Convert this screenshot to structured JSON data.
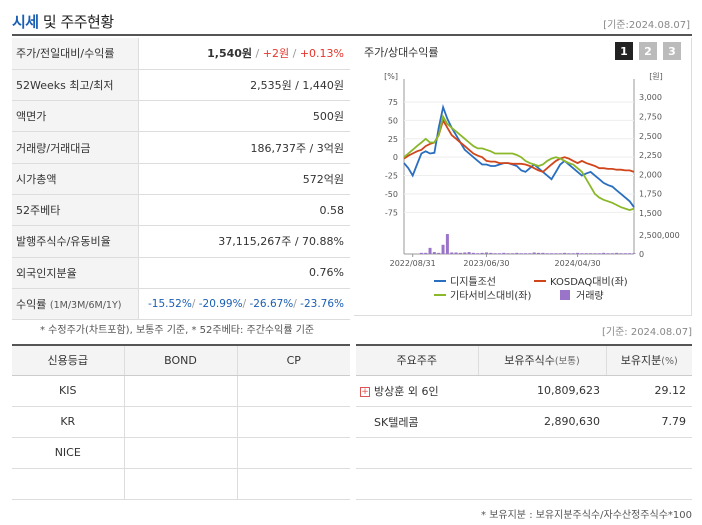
{
  "header": {
    "title_accent": "시세",
    "title_rest": " 및 주주현황",
    "date": "[기준:2024.08.07]"
  },
  "quote": {
    "rows": [
      {
        "label": "주가/전일대비/수익률"
      },
      {
        "label": "52Weeks 최고/최저",
        "value": "2,535원 / 1,440원"
      },
      {
        "label": "액면가",
        "value": "500원"
      },
      {
        "label": "거래량/거래대금",
        "value": "186,737주 / 3억원"
      },
      {
        "label": "시가총액",
        "value": "572억원"
      },
      {
        "label": "52주베타",
        "value": "0.58"
      },
      {
        "label": "발행주식수/유동비율",
        "value": "37,115,267주 / 70.88%"
      },
      {
        "label": "외국인지분율",
        "value": "0.76%"
      },
      {
        "label": "수익률",
        "label_sub": "(1M/3M/6M/1Y)"
      }
    ],
    "price": "1,540원",
    "change": "+2원",
    "change_pct": "+0.13%",
    "returns": [
      "-15.52%",
      "-20.99%",
      "-26.67%",
      "-23.76%"
    ]
  },
  "chart_panel": {
    "title": "주가/상대수익률",
    "tabs": [
      "1",
      "2",
      "3"
    ]
  },
  "chart_data": {
    "type": "line",
    "left_axis": {
      "unit": "[%]",
      "ticks": [
        "75",
        "50",
        "25",
        "0",
        "-25",
        "-50",
        "-75"
      ],
      "range": [
        -80,
        90
      ]
    },
    "right_axis": {
      "unit": "[원]",
      "ticks": [
        "3,000",
        "2,750",
        "2,500",
        "2,250",
        "2,000",
        "1,750",
        "1,500"
      ],
      "range": [
        1460,
        3080
      ]
    },
    "volume_axis": {
      "ticks": [
        "2,500,000",
        "0"
      ],
      "range": [
        0,
        3000000
      ]
    },
    "x_ticks": [
      "2022/08/31",
      "2023/06/30",
      "2024/04/30"
    ],
    "x_tick_index": [
      2,
      19,
      40
    ],
    "x_count": 54,
    "series": [
      {
        "name": "디지틀조선",
        "color": "#2a6ebf",
        "axis": "left",
        "values": [
          -8,
          -15,
          -25,
          -10,
          5,
          8,
          5,
          6,
          40,
          68,
          52,
          40,
          30,
          20,
          10,
          5,
          0,
          -5,
          -10,
          -10,
          -12,
          -12,
          -10,
          -8,
          -8,
          -10,
          -12,
          -18,
          -20,
          -15,
          -10,
          -15,
          -20,
          -25,
          -30,
          -20,
          -10,
          -5,
          -10,
          -15,
          -20,
          -25,
          -22,
          -20,
          -25,
          -30,
          -35,
          -38,
          -40,
          -45,
          -50,
          -55,
          -60,
          -68
        ]
      },
      {
        "name": "KOSDAQ대비(좌)",
        "color": "#d0451b",
        "axis": "left",
        "values": [
          -2,
          2,
          5,
          8,
          10,
          15,
          18,
          20,
          30,
          50,
          40,
          30,
          25,
          20,
          15,
          10,
          5,
          2,
          0,
          -5,
          -6,
          -6,
          -8,
          -8,
          -8,
          -9,
          -9,
          -9,
          -10,
          -12,
          -15,
          -18,
          -20,
          -15,
          -10,
          -5,
          -2,
          0,
          -2,
          -5,
          -8,
          -5,
          -8,
          -10,
          -12,
          -15,
          -15,
          -16,
          -16,
          -17,
          -17,
          -18,
          -18,
          -20
        ]
      },
      {
        "name": "기타서비스대비(좌)",
        "color": "#8ab82a",
        "axis": "left",
        "values": [
          0,
          5,
          10,
          15,
          20,
          25,
          20,
          20,
          30,
          55,
          45,
          40,
          35,
          30,
          25,
          20,
          15,
          12,
          12,
          10,
          8,
          5,
          5,
          5,
          5,
          5,
          3,
          0,
          -5,
          -8,
          -10,
          -12,
          -10,
          -5,
          -2,
          0,
          -2,
          -5,
          -8,
          -10,
          -15,
          -20,
          -30,
          -40,
          -50,
          -55,
          -58,
          -60,
          -62,
          -65,
          -68,
          -70,
          -72,
          -70
        ]
      },
      {
        "name": "거래량",
        "color": "#9a74c9",
        "axis": "volume",
        "type": "bar",
        "values": [
          0,
          0,
          0,
          0,
          150000,
          150000,
          800000,
          250000,
          150000,
          1200000,
          2600000,
          200000,
          200000,
          150000,
          200000,
          250000,
          150000,
          100000,
          150000,
          200000,
          150000,
          100000,
          100000,
          150000,
          100000,
          100000,
          150000,
          100000,
          100000,
          100000,
          200000,
          150000,
          150000,
          100000,
          100000,
          100000,
          100000,
          150000,
          100000,
          100000,
          150000,
          100000,
          100000,
          100000,
          100000,
          100000,
          150000,
          100000,
          100000,
          150000,
          100000,
          100000,
          100000,
          100000
        ]
      }
    ]
  },
  "footnotes": {
    "left": "* 수정주가(차트포함), 보통주 기준, * 52주베타: 주간수익률 기준",
    "right": "[기준: 2024.08.07]",
    "bottom": "* 보유지분 : 보유지분주식수/자수산정주식수*100"
  },
  "credit": {
    "headers": [
      "신용등급",
      "BOND",
      "CP"
    ],
    "rows": [
      [
        "KIS",
        "",
        ""
      ],
      [
        "KR",
        "",
        ""
      ],
      [
        "NICE",
        "",
        ""
      ],
      [
        "",
        "",
        ""
      ]
    ]
  },
  "holders": {
    "headers": [
      "주요주주",
      "보유주식수",
      "보유지분"
    ],
    "header_units": [
      "",
      "(보통)",
      "(%)"
    ],
    "rows": [
      {
        "name": "방상훈 외 6인",
        "shares": "10,809,623",
        "pct": "29.12",
        "expandable": true
      },
      {
        "name": "SK텔레콤",
        "shares": "2,890,630",
        "pct": "7.79",
        "expandable": false
      },
      {
        "name": "",
        "shares": "",
        "pct": "",
        "expandable": false
      },
      {
        "name": "",
        "shares": "",
        "pct": "",
        "expandable": false
      },
      {
        "name": "",
        "shares": "",
        "pct": "",
        "expandable": false
      }
    ]
  }
}
